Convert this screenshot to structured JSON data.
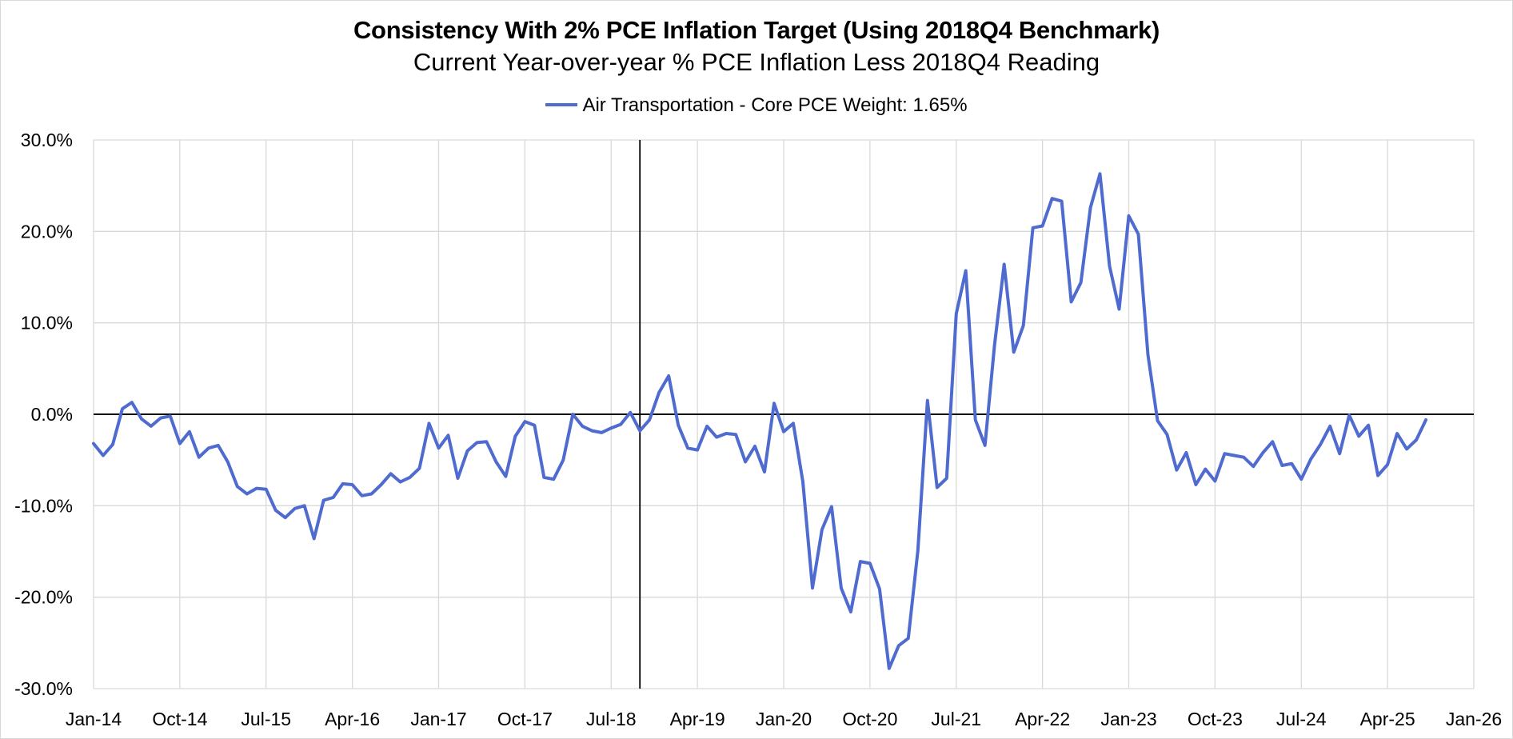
{
  "chart_data": {
    "type": "line",
    "title": "Consistency With 2% PCE Inflation Target (Using 2018Q4 Benchmark)",
    "subtitle": "Current Year-over-year % PCE Inflation Less 2018Q4 Reading",
    "series": [
      {
        "name": "Air Transportation - Core PCE Weight: 1.65%",
        "color": "#4f6bcf",
        "start": "Jan-14",
        "values": [
          -3.2,
          -4.5,
          -3.3,
          0.6,
          1.3,
          -0.5,
          -1.3,
          -0.4,
          -0.2,
          -3.2,
          -1.9,
          -4.7,
          -3.7,
          -3.4,
          -5.2,
          -7.9,
          -8.7,
          -8.1,
          -8.2,
          -10.5,
          -11.3,
          -10.3,
          -10.0,
          -13.6,
          -9.4,
          -9.1,
          -7.6,
          -7.7,
          -8.9,
          -8.7,
          -7.7,
          -6.5,
          -7.4,
          -6.9,
          -5.9,
          -1.0,
          -3.7,
          -2.3,
          -7.0,
          -4.0,
          -3.1,
          -3.0,
          -5.2,
          -6.8,
          -2.4,
          -0.8,
          -1.2,
          -6.9,
          -7.1,
          -5.0,
          0.0,
          -1.3,
          -1.8,
          -2.0,
          -1.5,
          -1.1,
          0.2,
          -1.8,
          -0.6,
          2.4,
          4.2,
          -1.2,
          -3.7,
          -3.9,
          -1.3,
          -2.5,
          -2.1,
          -2.2,
          -5.2,
          -3.5,
          -6.3,
          1.2,
          -1.9,
          -1.0,
          -7.4,
          -19.0,
          -12.6,
          -10.1,
          -19.0,
          -21.6,
          -16.1,
          -16.3,
          -19.1,
          -27.8,
          -25.3,
          -24.5,
          -14.9,
          1.5,
          -8.0,
          -7.0,
          11.0,
          15.7,
          -0.6,
          -3.4,
          7.6,
          16.4,
          6.8,
          9.7,
          20.4,
          20.6,
          23.6,
          23.3,
          12.3,
          14.4,
          22.6,
          26.3,
          16.2,
          11.5,
          21.7,
          19.7,
          6.5,
          -0.7,
          -2.2,
          -6.1,
          -4.2,
          -7.7,
          -6.0,
          -7.3,
          -4.3,
          -4.5,
          -4.7,
          -5.7,
          -4.2,
          -3.0,
          -5.6,
          -5.4,
          -7.1,
          -4.9,
          -3.3,
          -1.3,
          -4.3,
          -0.1,
          -2.4,
          -1.2,
          -6.7,
          -5.5,
          -2.1,
          -3.8,
          -2.8,
          -0.6
        ]
      }
    ],
    "x_ticks": [
      "Jan-14",
      "Oct-14",
      "Jul-15",
      "Apr-16",
      "Jan-17",
      "Oct-17",
      "Jul-18",
      "Apr-19",
      "Jan-20",
      "Oct-20",
      "Jul-21",
      "Apr-22",
      "Jan-23",
      "Oct-23",
      "Jul-24",
      "Apr-25",
      "Jan-26"
    ],
    "y_ticks": [
      "30.0%",
      "20.0%",
      "10.0%",
      "0.0%",
      "-10.0%",
      "-20.0%",
      "-30.0%"
    ],
    "ylim": [
      -30,
      30
    ],
    "xlabel": "",
    "ylabel": "",
    "reference_line": "Oct-18",
    "legend_position": "top-center",
    "grid": true
  }
}
